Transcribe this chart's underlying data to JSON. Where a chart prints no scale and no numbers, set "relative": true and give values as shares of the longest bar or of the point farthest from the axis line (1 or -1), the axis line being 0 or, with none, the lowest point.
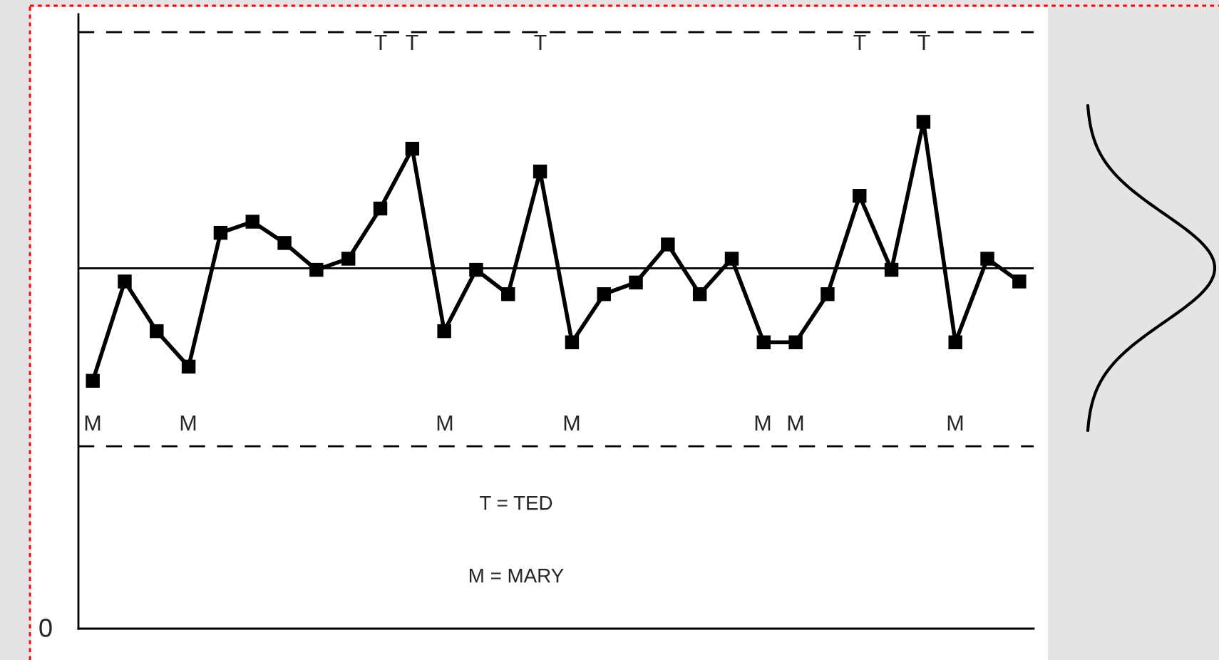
{
  "chart_data": {
    "type": "line",
    "relative": true,
    "marker": "square",
    "line_style": "solid",
    "categories": [
      null,
      null,
      null,
      null,
      null,
      null,
      null,
      null,
      null,
      null,
      null,
      null,
      null,
      null,
      null,
      null,
      null,
      null,
      null,
      null,
      null,
      null,
      null,
      null,
      null,
      null,
      null,
      null,
      null,
      null
    ],
    "series": [
      {
        "color": "#000000",
        "values": [
          0.489,
          0.685,
          0.587,
          0.517,
          0.781,
          0.803,
          0.761,
          0.708,
          0.73,
          0.829,
          0.947,
          0.587,
          0.708,
          0.66,
          0.902,
          0.565,
          0.66,
          0.683,
          0.758,
          0.66,
          0.73,
          0.565,
          0.565,
          0.66,
          0.854,
          0.708,
          1,
          0.565,
          0.73,
          0.685
        ]
      }
    ],
    "ref_lines": [
      {
        "axis": "y",
        "value": 0.711,
        "color": "#000000",
        "line_style": "solid"
      },
      {
        "axis": "y",
        "value": 1.177,
        "color": "#000000",
        "line_style": "dashed"
      },
      {
        "axis": "y",
        "value": 0.36,
        "color": "#000000",
        "line_style": "dashed"
      }
    ],
    "annotations": [
      "T",
      "T",
      "T",
      "T",
      "T",
      "M",
      "M",
      "M",
      "M",
      "M",
      "M",
      "M",
      "T = TED",
      "M = MARY",
      "0"
    ]
  }
}
